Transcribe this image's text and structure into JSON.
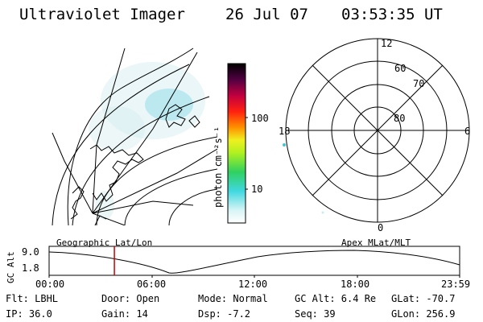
{
  "header": {
    "title": "Ultraviolet Imager",
    "date": "26 Jul 07",
    "time": "03:53:35 UT"
  },
  "colorbar": {
    "unit_label": "photon cm⁻²s⁻¹",
    "ticks": [
      "100",
      "10"
    ]
  },
  "polar_plot": {
    "lat_labels": [
      "80",
      "70",
      "60"
    ],
    "mlt_labels": {
      "top": "12",
      "left": "18",
      "right": "6",
      "bottom": "0"
    }
  },
  "panels": {
    "left_label": "Geographic Lat/Lon",
    "right_label": "Apex MLat/MLT"
  },
  "gc_alt_axis": {
    "label": "GC Alt",
    "ticks": [
      "9.0",
      "1.8"
    ]
  },
  "time_axis": {
    "ticks": [
      "00:00",
      "06:00",
      "12:00",
      "18:00",
      "23:59"
    ],
    "current_time_fraction": 0.159
  },
  "info": {
    "filter": "Flt: LBHL",
    "ip": "IP: 36.0",
    "door": "Door: Open",
    "gain": "Gain: 14",
    "mode": "Mode: Normal",
    "dsp": "Dsp:   -7.2",
    "gc_alt": "GC Alt: 6.4 Re",
    "seq": "Seq: 39",
    "glat": "GLat: -70.7",
    "glon": "GLon: 256.9"
  },
  "colors": {
    "background": "#ffffff",
    "foreground": "#000000",
    "time_marker": "#cc0000",
    "aurora": "#bfeaea"
  }
}
